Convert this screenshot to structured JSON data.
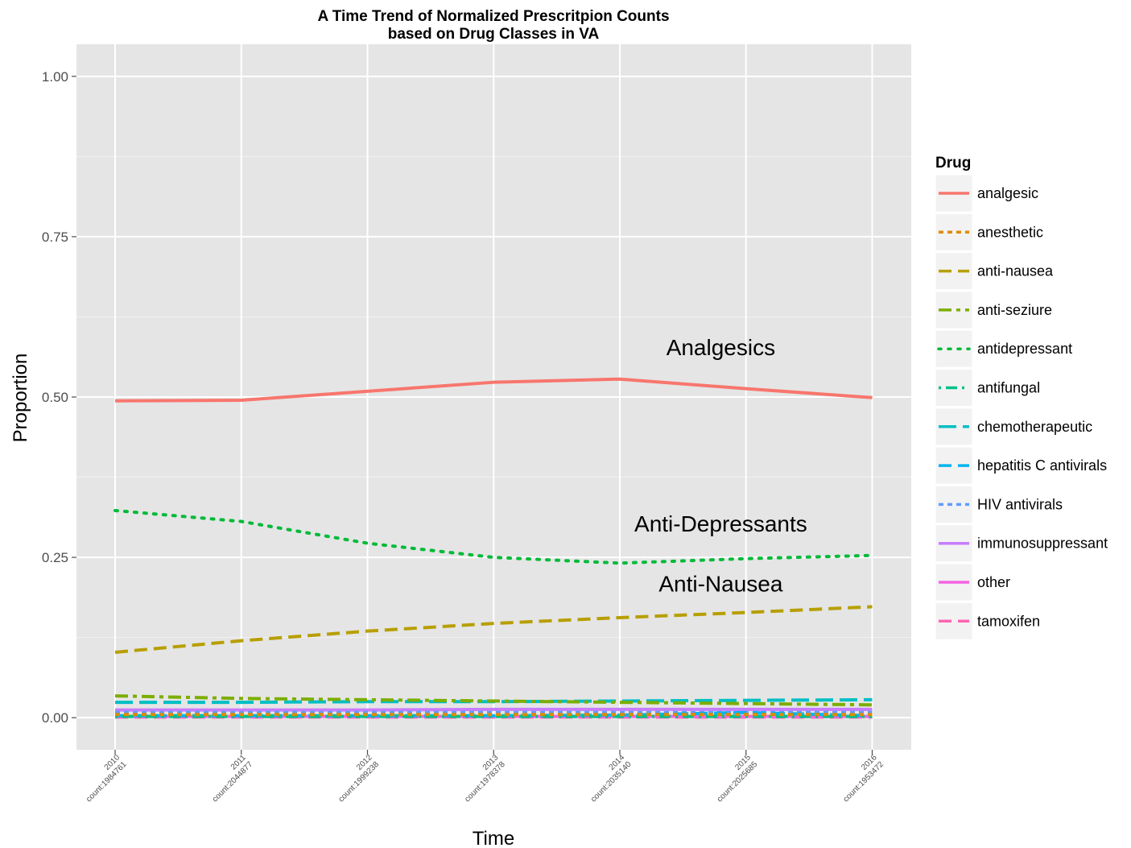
{
  "chart_data": {
    "type": "line",
    "title": [
      "A Time Trend of Normalized Prescritpion Counts",
      "based on Drug Classes in VA"
    ],
    "xlabel": "Time",
    "ylabel": "Proportion",
    "ylim": [
      -0.05,
      1.05
    ],
    "y_ticks": [
      {
        "value": 0.0,
        "label": "0.00"
      },
      {
        "value": 0.25,
        "label": "0.25"
      },
      {
        "value": 0.5,
        "label": "0.50"
      },
      {
        "value": 0.75,
        "label": "0.75"
      },
      {
        "value": 1.0,
        "label": "1.00"
      }
    ],
    "grid": true,
    "legend": {
      "title": "Drug",
      "position": "right"
    },
    "categories": [
      {
        "year": "2010",
        "count": "count:1984761"
      },
      {
        "year": "2011",
        "count": "count:2044877"
      },
      {
        "year": "2012",
        "count": "count:1999238"
      },
      {
        "year": "2013",
        "count": "count:1978378"
      },
      {
        "year": "2014",
        "count": "count:2035140"
      },
      {
        "year": "2015",
        "count": "count:2025685"
      },
      {
        "year": "2016",
        "count": "count:1953472"
      }
    ],
    "series": [
      {
        "name": "analgesic",
        "color": "#F8766D",
        "dash": "solid",
        "values": [
          0.494,
          0.495,
          0.509,
          0.523,
          0.528,
          0.513,
          0.499
        ]
      },
      {
        "name": "anesthetic",
        "color": "#DE8C00",
        "dash": "short",
        "values": [
          0.005,
          0.005,
          0.005,
          0.005,
          0.005,
          0.005,
          0.005
        ]
      },
      {
        "name": "anti-nausea",
        "color": "#B79F00",
        "dash": "long",
        "values": [
          0.102,
          0.12,
          0.135,
          0.147,
          0.156,
          0.164,
          0.173
        ]
      },
      {
        "name": "anti-seziure",
        "color": "#7CAE00",
        "dash": "longshort",
        "values": [
          0.034,
          0.03,
          0.028,
          0.026,
          0.024,
          0.022,
          0.02
        ]
      },
      {
        "name": "antidepressant",
        "color": "#00BA38",
        "dash": "dotted",
        "values": [
          0.323,
          0.306,
          0.272,
          0.25,
          0.241,
          0.248,
          0.253
        ]
      },
      {
        "name": "antifungal",
        "color": "#00C08B",
        "dash": "dotlong",
        "values": [
          0.002,
          0.002,
          0.002,
          0.002,
          0.002,
          0.002,
          0.002
        ]
      },
      {
        "name": "chemotherapeutic",
        "color": "#00BFC4",
        "dash": "longlong",
        "values": [
          0.024,
          0.024,
          0.025,
          0.025,
          0.026,
          0.027,
          0.028
        ]
      },
      {
        "name": "hepatitis C antivirals",
        "color": "#00B4F0",
        "dash": "long",
        "values": [
          0.003,
          0.003,
          0.003,
          0.003,
          0.004,
          0.008,
          0.003
        ]
      },
      {
        "name": "HIV antivirals",
        "color": "#619CFF",
        "dash": "short",
        "values": [
          0.008,
          0.008,
          0.008,
          0.008,
          0.008,
          0.008,
          0.008
        ]
      },
      {
        "name": "immunosuppressant",
        "color": "#C77CFF",
        "dash": "solid",
        "values": [
          0.012,
          0.012,
          0.012,
          0.013,
          0.013,
          0.013,
          0.013
        ]
      },
      {
        "name": "other",
        "color": "#F564E3",
        "dash": "solid",
        "values": [
          0.002,
          0.002,
          0.002,
          0.002,
          0.002,
          0.002,
          0.002
        ]
      },
      {
        "name": "tamoxifen",
        "color": "#FF64B0",
        "dash": "long",
        "values": [
          0.001,
          0.001,
          0.001,
          0.001,
          0.001,
          0.001,
          0.001
        ]
      }
    ],
    "annotations": [
      {
        "text": "Analgesics",
        "x": "2014.8",
        "y": 0.565
      },
      {
        "text": "Anti-Depressants",
        "x": "2014.8",
        "y": 0.29
      },
      {
        "text": "Anti-Nausea",
        "x": "2014.8",
        "y": 0.197
      }
    ]
  }
}
